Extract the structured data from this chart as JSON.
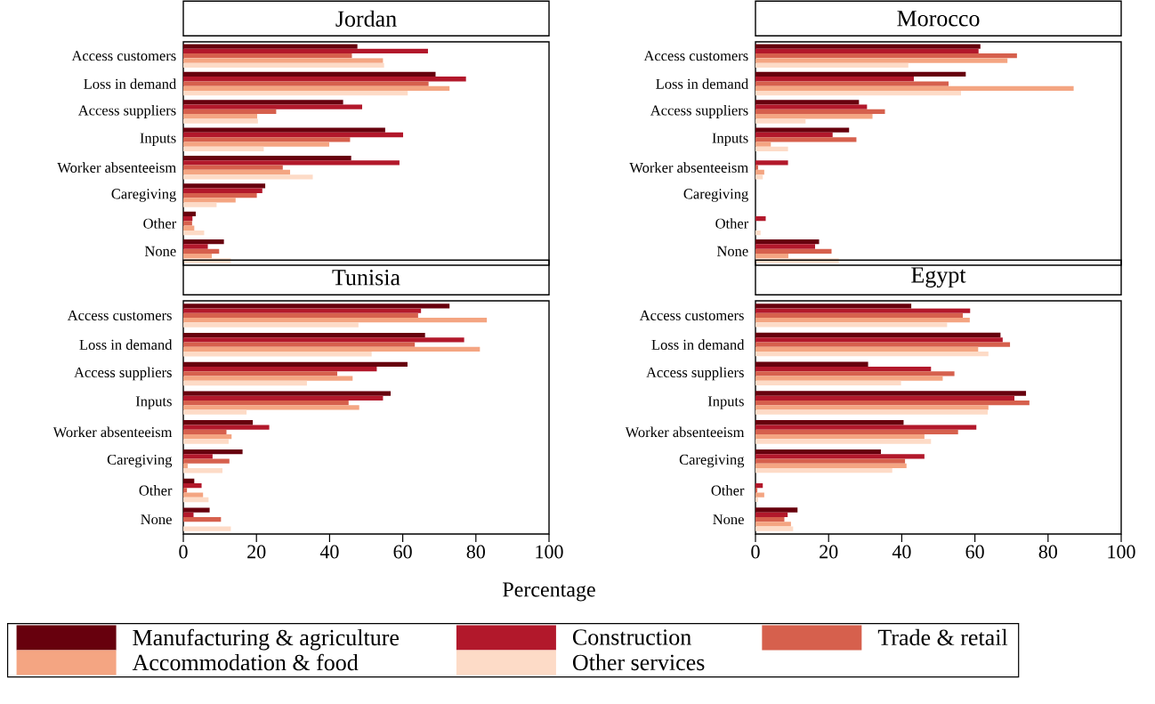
{
  "chart_data": [
    {
      "type": "bar",
      "orientation": "horizontal",
      "title": "Jordan",
      "categories": [
        "Access customers",
        "Loss in demand",
        "Access suppliers",
        "Inputs",
        "Worker absenteeism",
        "Caregiving",
        "Other",
        "None"
      ],
      "xlim": [
        0,
        100
      ],
      "xticks": [
        0,
        20,
        40,
        60,
        80,
        100
      ],
      "tick_labels": "y",
      "series": [
        {
          "color": "#67000d",
          "values": [
            47.6,
            69.0,
            43.7,
            55.2,
            45.9,
            22.4,
            3.4,
            11.1
          ]
        },
        {
          "color": "#b2182b",
          "values": [
            66.9,
            77.3,
            48.9,
            60.1,
            59.1,
            21.6,
            2.5,
            6.7
          ]
        },
        {
          "color": "#d6604d",
          "values": [
            46.1,
            67.1,
            25.4,
            45.6,
            27.2,
            20.1,
            2.4,
            9.8
          ]
        },
        {
          "color": "#f4a582",
          "values": [
            54.6,
            72.8,
            20.2,
            39.9,
            29.2,
            14.3,
            3.0,
            7.8
          ]
        },
        {
          "color": "#fddbc7",
          "values": [
            54.9,
            61.4,
            20.4,
            22.0,
            35.4,
            9.1,
            5.7,
            13.0
          ]
        }
      ]
    },
    {
      "type": "bar",
      "orientation": "horizontal",
      "title": "Morocco",
      "categories": [
        "Access customers",
        "Loss in demand",
        "Access suppliers",
        "Inputs",
        "Worker absenteeism",
        "Caregiving",
        "Other",
        "None"
      ],
      "xlim": [
        0,
        100
      ],
      "xticks": [
        0,
        20,
        40,
        60,
        80,
        100
      ],
      "tick_labels": "y",
      "series": [
        {
          "color": "#67000d",
          "values": [
            61.5,
            57.5,
            28.3,
            25.6,
            0,
            0,
            0,
            17.4
          ]
        },
        {
          "color": "#b2182b",
          "values": [
            61.0,
            43.3,
            30.5,
            21.1,
            8.9,
            0,
            2.8,
            16.3
          ]
        },
        {
          "color": "#d6604d",
          "values": [
            71.5,
            52.8,
            35.4,
            27.6,
            0.7,
            0,
            0,
            20.8
          ]
        },
        {
          "color": "#f4a582",
          "values": [
            68.9,
            87.0,
            32.0,
            4.2,
            2.4,
            0,
            0,
            9.0
          ]
        },
        {
          "color": "#fddbc7",
          "values": [
            41.8,
            56.2,
            13.7,
            8.9,
            2.0,
            0,
            1.4,
            22.8
          ]
        }
      ]
    },
    {
      "type": "bar",
      "orientation": "horizontal",
      "title": "Tunisia",
      "xlabel": "Percentage",
      "legend": "bottom",
      "categories": [
        "Access customers",
        "Loss in demand",
        "Access suppliers",
        "Inputs",
        "Worker absenteeism",
        "Caregiving",
        "Other",
        "None"
      ],
      "xlim": [
        0,
        100
      ],
      "xticks": [
        0,
        20,
        40,
        60,
        80,
        100
      ],
      "series": [
        {
          "name": "Manufacturing & agriculture",
          "color": "#67000d",
          "values": [
            72.8,
            66.1,
            61.3,
            56.7,
            19.0,
            16.2,
            3.0,
            7.2
          ]
        },
        {
          "name": "Construction",
          "color": "#b2182b",
          "values": [
            65.0,
            76.8,
            52.9,
            54.6,
            23.5,
            8.0,
            5.0,
            2.8
          ]
        },
        {
          "name": "Trade & retail",
          "color": "#d6604d",
          "values": [
            64.2,
            63.3,
            42.1,
            45.2,
            11.8,
            12.6,
            1.0,
            10.3
          ]
        },
        {
          "name": "Accommodation & food",
          "color": "#f4a582",
          "values": [
            83.0,
            81.1,
            46.3,
            48.1,
            13.2,
            1.2,
            5.4,
            0
          ]
        },
        {
          "name": "Other services",
          "color": "#fddbc7",
          "values": [
            47.9,
            51.5,
            33.8,
            17.3,
            12.4,
            10.7,
            6.9,
            13.0
          ]
        }
      ]
    },
    {
      "type": "bar",
      "orientation": "horizontal",
      "title": "Egypt",
      "categories": [
        "Access customers",
        "Loss in demand",
        "Access suppliers",
        "Inputs",
        "Worker absenteeism",
        "Caregiving",
        "Other",
        "None"
      ],
      "xlim": [
        0,
        100
      ],
      "xticks": [
        0,
        20,
        40,
        60,
        80,
        100
      ],
      "series": [
        {
          "color": "#67000d",
          "values": [
            42.6,
            67.0,
            30.8,
            74.0,
            40.5,
            34.3,
            0,
            11.5
          ]
        },
        {
          "color": "#b2182b",
          "values": [
            58.7,
            67.6,
            48.0,
            70.8,
            60.4,
            46.2,
            2.0,
            8.8
          ]
        },
        {
          "color": "#d6604d",
          "values": [
            56.7,
            69.6,
            54.4,
            74.9,
            55.4,
            40.9,
            0.5,
            7.9
          ]
        },
        {
          "color": "#f4a582",
          "values": [
            58.6,
            60.9,
            51.2,
            63.7,
            46.2,
            41.3,
            2.4,
            9.7
          ]
        },
        {
          "color": "#fddbc7",
          "values": [
            52.4,
            63.7,
            39.8,
            63.5,
            48.0,
            37.4,
            0.7,
            10.3
          ]
        }
      ]
    }
  ]
}
